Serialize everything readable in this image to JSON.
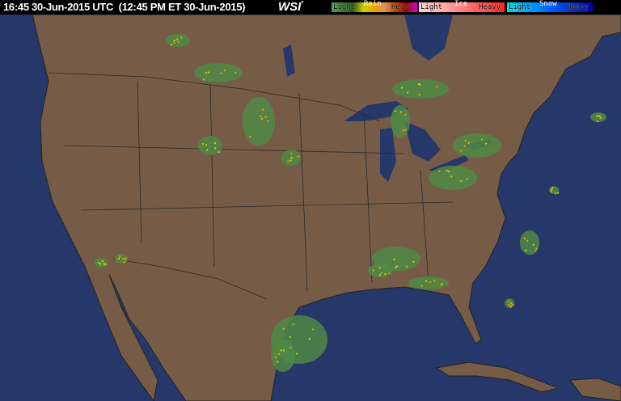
{
  "header": {
    "timestamp": "16:45 30-Jun-2015 UTC  (12:45 PM ET 30-Jun-2015)",
    "logo": "WSI",
    "logo_mark": "°"
  },
  "legend": [
    {
      "title": "Rain",
      "light": "Light",
      "heavy": "Heavy",
      "colors": [
        "#5a9a50",
        "#3a7a30",
        "#2a5a20",
        "#d0d000",
        "#f0a000",
        "#e09060",
        "#c04000",
        "#a00000",
        "#e000e0"
      ]
    },
    {
      "title": "Ice",
      "light": "Light",
      "heavy": "Heavy",
      "colors": [
        "#ffd0d0",
        "#ffb0b0",
        "#ff8080",
        "#ff5050",
        "#ff2020"
      ]
    },
    {
      "title": "Snow",
      "light": "Light",
      "heavy": "Heavy",
      "colors": [
        "#00e0e0",
        "#00a0ff",
        "#0060ff",
        "#0030d0",
        "#0000a0"
      ]
    }
  ],
  "map": {
    "ocean_color": "#26386a",
    "land_color": "#765c47",
    "border_color": "#2a2a2a"
  }
}
